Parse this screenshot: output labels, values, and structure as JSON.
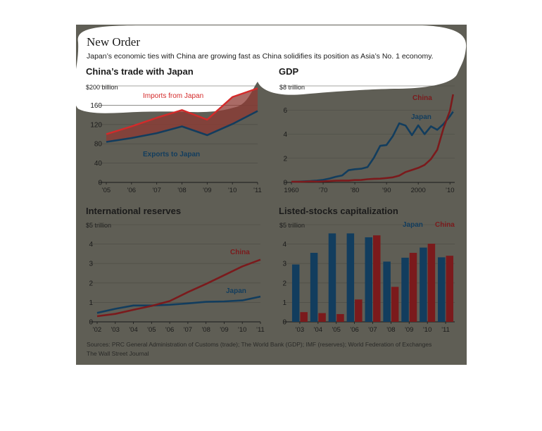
{
  "header": {
    "title": "New Order",
    "subtitle": "Japan’s economic ties with China are growing fast as China solidifies its position as Asia’s No. 1 economy."
  },
  "footer": {
    "sources": "Sources: PRC General Administration of Customs (trade); The World Bank (GDP); IMF (reserves); World Federation of Exchanges",
    "credit": "The Wall Street Journal"
  },
  "colors": {
    "panel": "#5f5e55",
    "highlight": "#ffffff",
    "china": "#7b1a1c",
    "imports": "#d42a2a",
    "japan": "#123d5e",
    "grid": "#4b4a44",
    "text": "#1b1b1b"
  },
  "chart_data": [
    {
      "type": "line",
      "title": "China’s trade with Japan",
      "unit_label": "$200 billion",
      "x": [
        "'05",
        "'06",
        "'07",
        "'08",
        "'09",
        "'10",
        "'11"
      ],
      "ylim": [
        0,
        200
      ],
      "yticks": [
        0,
        40,
        80,
        120,
        160,
        200
      ],
      "ytick_labels": [
        "0",
        "40",
        "80",
        "120",
        "160",
        ""
      ],
      "series": [
        {
          "name": "Imports from Japan",
          "values": [
            100,
            116,
            134,
            150,
            130,
            177,
            195
          ]
        },
        {
          "name": "Exports to Japan",
          "values": [
            84,
            92,
            102,
            116,
            98,
            121,
            148
          ]
        }
      ]
    },
    {
      "type": "line",
      "title": "GDP",
      "unit_label": "$8 trillion",
      "x": [
        1960,
        1962,
        1964,
        1966,
        1968,
        1970,
        1972,
        1974,
        1976,
        1978,
        1980,
        1982,
        1984,
        1986,
        1988,
        1990,
        1992,
        1994,
        1996,
        1998,
        2000,
        2002,
        2004,
        2006,
        2008,
        2010,
        2011
      ],
      "xtick_values": [
        1960,
        1970,
        1980,
        1990,
        2000,
        2010
      ],
      "xtick_labels": [
        "1960",
        "’70",
        "’80",
        "’90",
        "2000",
        "’10"
      ],
      "ylim": [
        0,
        8
      ],
      "yticks": [
        0,
        2,
        4,
        6,
        8
      ],
      "ytick_labels": [
        "0",
        "2",
        "4",
        "6",
        ""
      ],
      "series": [
        {
          "name": "China",
          "values": [
            0.06,
            0.05,
            0.06,
            0.08,
            0.07,
            0.09,
            0.11,
            0.14,
            0.15,
            0.15,
            0.19,
            0.2,
            0.26,
            0.3,
            0.31,
            0.36,
            0.42,
            0.56,
            0.86,
            1.03,
            1.2,
            1.45,
            1.93,
            2.71,
            4.52,
            5.93,
            7.3
          ]
        },
        {
          "name": "Japan",
          "values": [
            0.04,
            0.06,
            0.08,
            0.11,
            0.15,
            0.21,
            0.32,
            0.47,
            0.58,
            1.01,
            1.09,
            1.13,
            1.27,
            2.04,
            3.03,
            3.1,
            3.85,
            4.9,
            4.71,
            3.92,
            4.73,
            4.0,
            4.65,
            4.36,
            4.85,
            5.49,
            5.87
          ]
        }
      ]
    },
    {
      "type": "line",
      "title": "International reserves",
      "unit_label": "$5 trillion",
      "x": [
        "'02",
        "'03",
        "'04",
        "'05",
        "'06",
        "'07",
        "'08",
        "'09",
        "'10",
        "'11"
      ],
      "ylim": [
        0,
        5
      ],
      "yticks": [
        0,
        1,
        2,
        3,
        4,
        5
      ],
      "ytick_labels": [
        "0",
        "1",
        "2",
        "3",
        "4",
        ""
      ],
      "series": [
        {
          "name": "China",
          "values": [
            0.29,
            0.41,
            0.62,
            0.82,
            1.07,
            1.53,
            1.95,
            2.4,
            2.85,
            3.2
          ]
        },
        {
          "name": "Japan",
          "values": [
            0.46,
            0.67,
            0.84,
            0.84,
            0.88,
            0.95,
            1.03,
            1.05,
            1.1,
            1.3
          ]
        }
      ]
    },
    {
      "type": "bar",
      "title": "Listed-stocks capitalization",
      "unit_label": "$5 trillion",
      "categories": [
        "'03",
        "'04",
        "'05",
        "'06",
        "'07",
        "'08",
        "'09",
        "'10",
        "'11"
      ],
      "ylim": [
        0,
        5
      ],
      "yticks": [
        0,
        1,
        2,
        3,
        4,
        5
      ],
      "ytick_labels": [
        "0",
        "1",
        "2",
        "3",
        "4",
        ""
      ],
      "series": [
        {
          "name": "Japan",
          "values": [
            2.95,
            3.55,
            4.55,
            4.55,
            4.35,
            3.1,
            3.3,
            3.82,
            3.32
          ]
        },
        {
          "name": "China",
          "values": [
            0.5,
            0.45,
            0.4,
            1.15,
            4.45,
            1.8,
            3.55,
            4.02,
            3.4
          ]
        }
      ]
    }
  ]
}
